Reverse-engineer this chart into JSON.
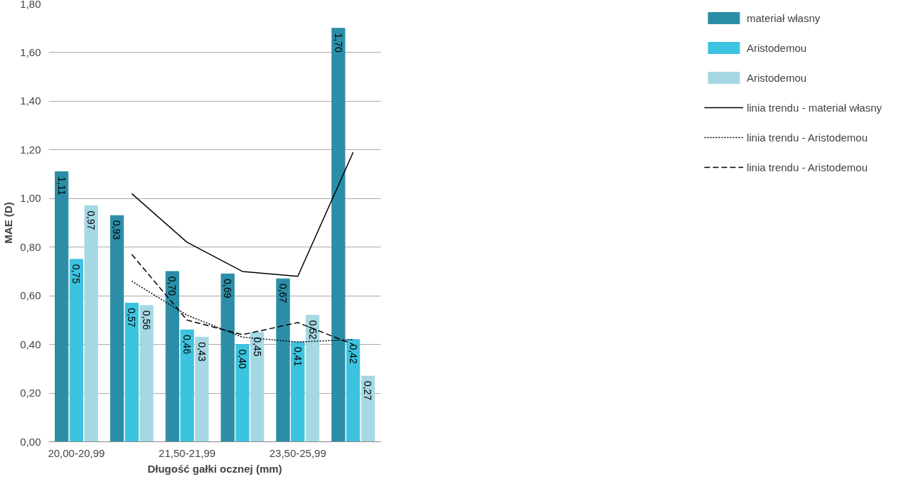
{
  "chart_data": {
    "type": "bar",
    "xlabel": "Długość gałki ocznej (mm)",
    "ylabel": "MAE (D)",
    "categories": [
      "20,00-20,99",
      null,
      "21,50-21,99",
      null,
      "23,50-25,99",
      null
    ],
    "ylim": [
      0,
      1.8
    ],
    "yticks": [
      {
        "value": 0,
        "label": "0,00"
      },
      {
        "value": 0.2,
        "label": "0,20"
      },
      {
        "value": 0.4,
        "label": "0,40"
      },
      {
        "value": 0.6,
        "label": "0,60"
      },
      {
        "value": 0.8,
        "label": "0,80"
      },
      {
        "value": 1.0,
        "label": "1,00"
      },
      {
        "value": 1.2,
        "label": "1,20"
      },
      {
        "value": 1.4,
        "label": "1,40"
      },
      {
        "value": 1.6,
        "label": "1,60"
      },
      {
        "value": 1.8,
        "label": "1,80"
      }
    ],
    "grid": "y",
    "legend": "right",
    "series": [
      {
        "name": "materiał własny",
        "color": "#2b8ea6",
        "values": [
          1.11,
          0.93,
          0.7,
          0.69,
          0.67,
          1.7
        ],
        "value_labels": [
          "1,11",
          "0,93",
          "0,70",
          "0,69",
          "0,67",
          "1,70"
        ]
      },
      {
        "name": "Aristodemou",
        "color": "#3cc3df",
        "values": [
          0.75,
          0.57,
          0.46,
          0.4,
          0.41,
          0.42
        ],
        "value_labels": [
          "0,75",
          "0,57",
          "0,46",
          "0,40",
          "0,41",
          "0,42"
        ]
      },
      {
        "name": "Aristodemou",
        "color": "#a6d8e4",
        "values": [
          0.97,
          0.56,
          0.43,
          0.45,
          0.52,
          0.27
        ],
        "value_labels": [
          "0,97",
          "0,56",
          "0,43",
          "0,45",
          "0,52",
          "0,27"
        ]
      },
      {
        "type": "line",
        "name": "linia trendu - materiał własny",
        "color": "#000000",
        "line_style": "solid",
        "values": [
          null,
          1.02,
          0.82,
          0.7,
          0.68,
          1.19
        ]
      },
      {
        "type": "line",
        "name": "linia trendu - Aristodemou",
        "color": "#000000",
        "line_style": "dotted",
        "values": [
          null,
          0.66,
          0.52,
          0.43,
          0.41,
          0.42
        ]
      },
      {
        "type": "line",
        "name": "linia trendu - Aristodemou",
        "color": "#000000",
        "line_style": "dashed",
        "values": [
          null,
          0.77,
          0.5,
          0.44,
          0.49,
          0.4
        ]
      }
    ]
  }
}
